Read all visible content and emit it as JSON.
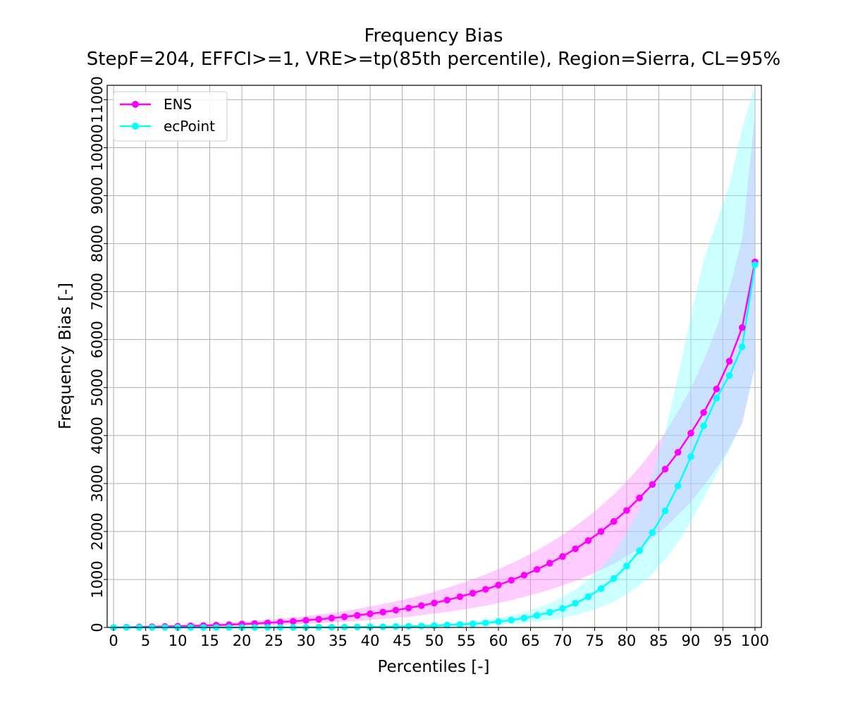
{
  "chart_data": {
    "type": "line",
    "title": "Frequency Bias",
    "subtitle": "StepF=204, EFFCI>=1, VRE>=tp(85th percentile), Region=Sierra, CL=95%",
    "xlabel": "Percentiles [-]",
    "ylabel": "Frequency Bias [-]",
    "xlim": [
      -1,
      101
    ],
    "ylim": [
      0,
      11300
    ],
    "x_ticks": [
      "0",
      "5",
      "10",
      "15",
      "20",
      "25",
      "30",
      "35",
      "40",
      "45",
      "50",
      "55",
      "60",
      "65",
      "70",
      "75",
      "80",
      "85",
      "90",
      "95",
      "100"
    ],
    "y_ticks": [
      "0",
      "1000",
      "2000",
      "3000",
      "4000",
      "5000",
      "6000",
      "7000",
      "8000",
      "9000",
      "10000",
      "11000"
    ],
    "grid": true,
    "legend_position": "top-left",
    "x": [
      0,
      2,
      4,
      6,
      8,
      10,
      12,
      14,
      16,
      18,
      20,
      22,
      24,
      26,
      28,
      30,
      32,
      34,
      36,
      38,
      40,
      42,
      44,
      46,
      48,
      50,
      52,
      54,
      56,
      58,
      60,
      62,
      64,
      66,
      68,
      70,
      72,
      74,
      76,
      78,
      80,
      82,
      84,
      86,
      88,
      90,
      92,
      94,
      96,
      98,
      100
    ],
    "series": [
      {
        "name": "ENS",
        "color": "#ff00ff",
        "band_color": "#ff80ff",
        "values": [
          0,
          5,
          10,
          15,
          20,
          25,
          32,
          40,
          48,
          58,
          70,
          82,
          96,
          112,
          128,
          148,
          170,
          195,
          222,
          252,
          285,
          320,
          360,
          405,
          455,
          510,
          570,
          640,
          715,
          795,
          885,
          985,
          1090,
          1210,
          1340,
          1480,
          1640,
          1810,
          2000,
          2210,
          2440,
          2700,
          2980,
          3300,
          3650,
          4050,
          4480,
          4970,
          5550,
          6250,
          7620
        ],
        "lower": [
          0,
          2,
          4,
          6,
          8,
          11,
          14,
          18,
          22,
          27,
          33,
          40,
          48,
          56,
          65,
          76,
          88,
          102,
          118,
          136,
          155,
          176,
          200,
          226,
          255,
          288,
          324,
          364,
          408,
          456,
          510,
          570,
          636,
          708,
          788,
          876,
          972,
          1080,
          1200,
          1330,
          1480,
          1660,
          1860,
          2080,
          2340,
          2620,
          2950,
          3320,
          3740,
          4250,
          5450
        ],
        "upper": [
          0,
          9,
          17,
          25,
          34,
          42,
          55,
          66,
          80,
          96,
          115,
          134,
          156,
          180,
          208,
          236,
          270,
          305,
          344,
          388,
          436,
          488,
          544,
          606,
          672,
          744,
          824,
          910,
          1004,
          1104,
          1214,
          1334,
          1464,
          1604,
          1760,
          1930,
          2110,
          2310,
          2530,
          2770,
          3040,
          3340,
          3680,
          4060,
          4500,
          4980,
          5560,
          6240,
          7050,
          8100,
          10700
        ]
      },
      {
        "name": "ecPoint",
        "color": "#00ffff",
        "band_color": "#80ffff",
        "values": [
          0,
          0,
          0,
          0,
          0,
          0,
          0,
          0,
          0,
          0,
          0,
          0,
          1,
          1,
          2,
          3,
          4,
          5,
          7,
          9,
          12,
          15,
          19,
          24,
          30,
          38,
          48,
          60,
          76,
          96,
          122,
          154,
          196,
          248,
          314,
          398,
          504,
          640,
          810,
          1020,
          1280,
          1600,
          1980,
          2430,
          2950,
          3560,
          4200,
          4780,
          5250,
          5850,
          7560
        ],
        "lower": [
          0,
          0,
          0,
          0,
          0,
          0,
          0,
          0,
          0,
          0,
          0,
          0,
          0,
          0,
          0,
          1,
          1,
          2,
          3,
          4,
          5,
          7,
          9,
          11,
          14,
          18,
          23,
          29,
          37,
          47,
          60,
          76,
          97,
          124,
          158,
          202,
          258,
          330,
          422,
          540,
          690,
          880,
          1120,
          1420,
          1780,
          2210,
          2700,
          3200,
          3700,
          4300,
          5400
        ],
        "upper": [
          0,
          0,
          0,
          0,
          0,
          0,
          0,
          1,
          1,
          1,
          1,
          2,
          2,
          3,
          4,
          6,
          8,
          10,
          13,
          16,
          20,
          25,
          32,
          40,
          50,
          63,
          79,
          100,
          125,
          158,
          200,
          252,
          318,
          400,
          504,
          630,
          790,
          990,
          1240,
          1560,
          1960,
          2480,
          3160,
          4060,
          5230,
          6480,
          7650,
          8450,
          9200,
          10400,
          11300
        ]
      }
    ]
  }
}
